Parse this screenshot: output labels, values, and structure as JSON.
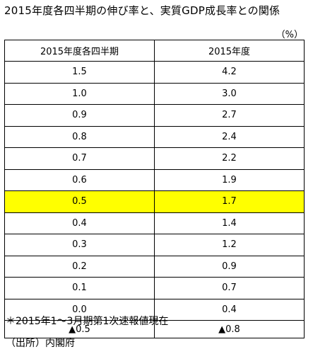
{
  "title": "2015年度各四半期の伸び率と、実質GDP成長率との関係",
  "unit": "（%）",
  "table": {
    "headers": [
      "2015年度各四半期",
      "2015年度"
    ],
    "rows": [
      [
        "1.5",
        "4.2"
      ],
      [
        "1.0",
        "3.0"
      ],
      [
        "0.9",
        "2.7"
      ],
      [
        "0.8",
        "2.4"
      ],
      [
        "0.7",
        "2.2"
      ],
      [
        "0.6",
        "1.9"
      ],
      [
        "0.5",
        "1.7"
      ],
      [
        "0.4",
        "1.4"
      ],
      [
        "0.3",
        "1.2"
      ],
      [
        "0.2",
        "0.9"
      ],
      [
        "0.1",
        "0.7"
      ],
      [
        "0.0",
        "0.4"
      ],
      [
        "▲0.5",
        "▲0.8"
      ]
    ],
    "highlight_row_index": 6,
    "highlight_color": "#ffff00"
  },
  "note": "＊2015年1～3月期第1次速報値現在",
  "source": "（出所）内閣府"
}
